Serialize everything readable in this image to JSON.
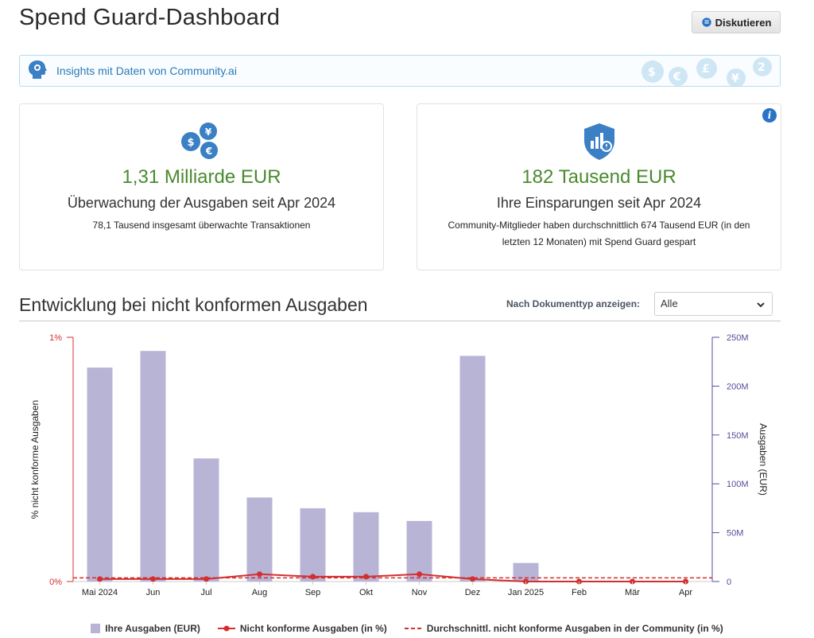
{
  "header": {
    "title": "Spend Guard-Dashboard",
    "discuss_label": "Diskutieren"
  },
  "insights": {
    "text": "Insights mit Daten von Community.ai"
  },
  "cards": {
    "monitoring": {
      "value": "1,31 Milliarde EUR",
      "subtitle": "Überwachung der Ausgaben seit Apr 2024",
      "detail": "78,1 Tausend insgesamt überwachte Transaktionen"
    },
    "savings": {
      "value": "182 Tausend EUR",
      "subtitle": "Ihre Einsparungen seit Apr 2024",
      "detail": "Community-Mitglieder haben durchschnittlich 674 Tausend EUR (in den letzten 12 Monaten) mit Spend Guard gespart",
      "info_icon": "i"
    }
  },
  "section": {
    "title": "Entwicklung bei nicht konformen Ausgaben",
    "filter_label": "Nach Dokumenttyp anzeigen:",
    "filter_value": "Alle"
  },
  "colors": {
    "bar": "#b8b4d6",
    "line": "#d32f2f",
    "left_axis": "#d32f2f",
    "right_axis": "#5b4a9a",
    "value_green": "#4a8a2e",
    "link_blue": "#2a7ab8"
  },
  "chart_data": {
    "type": "bar",
    "categories": [
      "Mai 2024",
      "Jun",
      "Jul",
      "Aug",
      "Sep",
      "Okt",
      "Nov",
      "Dez",
      "Jan 2025",
      "Feb",
      "Mär",
      "Apr"
    ],
    "series": [
      {
        "name": "Ihre Ausgaben (EUR)",
        "type": "bar",
        "axis": "right",
        "values": [
          219000000,
          236000000,
          126000000,
          86000000,
          75000000,
          71000000,
          62000000,
          231000000,
          19000000,
          0,
          0,
          0
        ]
      },
      {
        "name": "Nicht konforme Ausgaben (in %)",
        "type": "line",
        "axis": "left",
        "values": [
          0.01,
          0.01,
          0.01,
          0.03,
          0.02,
          0.02,
          0.03,
          0.01,
          0.0,
          0.0,
          0.0,
          0.0
        ]
      },
      {
        "name": "Durchschnittl. nicht konforme Ausgaben in der Community (in %)",
        "type": "dashed-line",
        "axis": "left",
        "value": 0.015
      }
    ],
    "left_axis": {
      "label": "% nicht konforme Ausgaben",
      "ticks": [
        "0%",
        "1%"
      ],
      "range": [
        0,
        1
      ]
    },
    "right_axis": {
      "label": "Ausgaben (EUR)",
      "ticks": [
        "0",
        "50M",
        "100M",
        "150M",
        "200M",
        "250M"
      ],
      "range": [
        0,
        250000000
      ]
    },
    "legend_position": "bottom",
    "grid": false
  }
}
